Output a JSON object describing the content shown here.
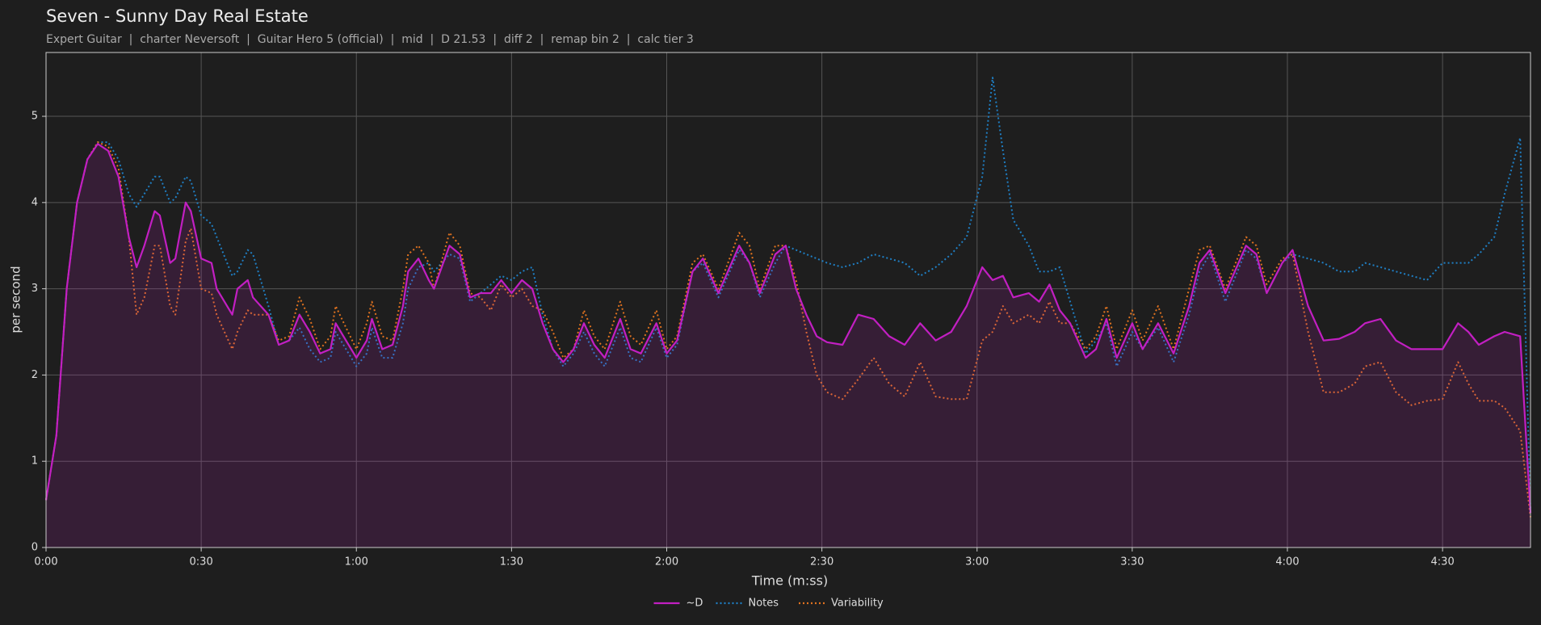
{
  "chart_data": {
    "type": "line",
    "title": "Seven - Sunny Day Real Estate",
    "subtitle": "Expert Guitar  |  charter Neversoft  |  Guitar Hero 5 (official)  |  mid  |  D 21.53  |  diff 2  |  remap bin 2  |  calc tier 3",
    "xlabel": "Time (m:ss)",
    "ylabel": "per second",
    "grid": true,
    "legend": "bottom",
    "x": [
      0,
      2,
      4,
      6,
      8,
      10,
      12,
      14,
      16,
      17.5,
      19,
      21,
      22,
      24,
      25,
      27,
      28,
      30,
      32,
      33,
      36,
      37,
      39,
      40,
      43,
      45,
      47,
      49,
      51,
      53,
      55,
      56,
      58,
      60,
      62,
      63,
      65,
      67,
      69,
      70,
      72,
      74,
      75,
      78,
      80,
      82,
      84,
      86,
      88,
      90,
      92,
      94,
      96,
      98,
      100,
      102,
      104,
      106,
      108,
      111,
      113,
      115,
      118,
      120,
      122,
      125,
      127,
      130,
      134,
      136,
      138,
      141,
      143,
      145,
      147,
      149,
      151,
      154,
      157,
      160,
      163,
      166,
      169,
      172,
      175,
      178,
      181,
      183,
      185,
      187,
      190,
      192,
      194,
      196,
      198,
      201,
      203,
      205,
      207,
      210,
      212,
      215,
      218,
      221,
      223,
      225,
      228,
      232,
      234,
      236,
      239,
      241,
      244,
      247,
      250,
      253,
      255,
      258,
      261,
      264,
      267,
      270,
      273,
      275,
      277,
      280,
      282,
      285,
      287
    ],
    "series": [
      {
        "name": "~D",
        "color": "#c21fc2",
        "style": "solid",
        "fill": true,
        "values": [
          0.55,
          1.3,
          3.0,
          4.0,
          4.5,
          4.68,
          4.6,
          4.3,
          3.6,
          3.25,
          3.5,
          3.9,
          3.85,
          3.3,
          3.35,
          4.0,
          3.9,
          3.35,
          3.3,
          3.0,
          2.7,
          3.0,
          3.1,
          2.9,
          2.7,
          2.35,
          2.4,
          2.7,
          2.5,
          2.25,
          2.3,
          2.6,
          2.4,
          2.2,
          2.4,
          2.65,
          2.3,
          2.35,
          2.8,
          3.2,
          3.35,
          3.1,
          3.0,
          3.5,
          3.4,
          2.9,
          2.95,
          2.95,
          3.1,
          2.95,
          3.1,
          3.0,
          2.6,
          2.3,
          2.15,
          2.3,
          2.6,
          2.35,
          2.2,
          2.65,
          2.3,
          2.25,
          2.6,
          2.25,
          2.4,
          3.2,
          3.35,
          2.95,
          3.5,
          3.3,
          2.95,
          3.4,
          3.5,
          3.0,
          2.7,
          2.45,
          2.38,
          2.35,
          2.7,
          2.65,
          2.45,
          2.35,
          2.6,
          2.4,
          2.5,
          2.8,
          3.25,
          3.1,
          3.15,
          2.9,
          2.95,
          2.85,
          3.05,
          2.75,
          2.6,
          2.2,
          2.3,
          2.65,
          2.2,
          2.6,
          2.3,
          2.6,
          2.25,
          2.8,
          3.3,
          3.45,
          2.95,
          3.5,
          3.4,
          2.95,
          3.3,
          3.45,
          2.8,
          2.4,
          2.42,
          2.5,
          2.6,
          2.65,
          2.4,
          2.3,
          2.3,
          2.3,
          2.6,
          2.5,
          2.35,
          2.45,
          2.5,
          2.45,
          0.4
        ]
      },
      {
        "name": "Notes",
        "color": "#1f7fc4",
        "style": "dotted",
        "values": [
          0.55,
          1.3,
          3.0,
          4.0,
          4.5,
          4.7,
          4.7,
          4.5,
          4.1,
          3.95,
          4.1,
          4.3,
          4.3,
          4.0,
          4.05,
          4.3,
          4.25,
          3.85,
          3.75,
          3.6,
          3.15,
          3.2,
          3.45,
          3.4,
          2.8,
          2.35,
          2.4,
          2.55,
          2.3,
          2.15,
          2.2,
          2.5,
          2.3,
          2.1,
          2.25,
          2.55,
          2.2,
          2.2,
          2.6,
          3.0,
          3.25,
          3.3,
          3.2,
          3.4,
          3.35,
          2.85,
          2.95,
          3.05,
          3.15,
          3.1,
          3.2,
          3.25,
          2.7,
          2.3,
          2.1,
          2.25,
          2.5,
          2.25,
          2.1,
          2.55,
          2.2,
          2.15,
          2.55,
          2.2,
          2.35,
          3.2,
          3.3,
          2.9,
          3.45,
          3.3,
          2.9,
          3.3,
          3.5,
          3.45,
          3.4,
          3.35,
          3.3,
          3.25,
          3.3,
          3.4,
          3.35,
          3.3,
          3.15,
          3.25,
          3.4,
          3.6,
          4.3,
          5.45,
          4.6,
          3.8,
          3.5,
          3.2,
          3.2,
          3.25,
          2.85,
          2.25,
          2.4,
          2.6,
          2.1,
          2.5,
          2.3,
          2.55,
          2.15,
          2.7,
          3.2,
          3.4,
          2.85,
          3.45,
          3.35,
          2.95,
          3.3,
          3.4,
          3.35,
          3.3,
          3.2,
          3.2,
          3.3,
          3.25,
          3.2,
          3.15,
          3.1,
          3.3,
          3.3,
          3.3,
          3.4,
          3.6,
          4.1,
          4.75,
          0.4
        ]
      },
      {
        "name": "Variability",
        "color": "#e0721f",
        "style": "dotted",
        "values": [
          0.55,
          1.3,
          3.0,
          4.0,
          4.5,
          4.7,
          4.65,
          4.4,
          3.6,
          2.7,
          2.9,
          3.5,
          3.5,
          2.8,
          2.7,
          3.55,
          3.7,
          3.0,
          2.95,
          2.7,
          2.3,
          2.5,
          2.75,
          2.7,
          2.7,
          2.4,
          2.45,
          2.9,
          2.65,
          2.3,
          2.45,
          2.8,
          2.55,
          2.3,
          2.6,
          2.85,
          2.45,
          2.4,
          3.0,
          3.4,
          3.5,
          3.3,
          3.0,
          3.65,
          3.5,
          2.95,
          2.9,
          2.75,
          3.05,
          2.9,
          3.0,
          2.8,
          2.75,
          2.5,
          2.2,
          2.3,
          2.75,
          2.45,
          2.3,
          2.85,
          2.45,
          2.35,
          2.75,
          2.3,
          2.45,
          3.3,
          3.4,
          3.0,
          3.65,
          3.5,
          3.0,
          3.5,
          3.5,
          3.1,
          2.5,
          2.0,
          1.8,
          1.72,
          1.95,
          2.2,
          1.9,
          1.75,
          2.15,
          1.75,
          1.72,
          1.72,
          2.4,
          2.5,
          2.8,
          2.6,
          2.7,
          2.6,
          2.85,
          2.6,
          2.6,
          2.3,
          2.45,
          2.8,
          2.3,
          2.75,
          2.4,
          2.8,
          2.3,
          3.0,
          3.45,
          3.5,
          3.0,
          3.6,
          3.5,
          3.05,
          3.35,
          3.4,
          2.5,
          1.8,
          1.8,
          1.9,
          2.1,
          2.15,
          1.8,
          1.65,
          1.7,
          1.72,
          2.15,
          1.9,
          1.7,
          1.7,
          1.62,
          1.35,
          0.35
        ]
      }
    ],
    "xlim": [
      0,
      287
    ],
    "xticks": [
      {
        "value": 0,
        "label": "0:00"
      },
      {
        "value": 30,
        "label": "0:30"
      },
      {
        "value": 60,
        "label": "1:00"
      },
      {
        "value": 90,
        "label": "1:30"
      },
      {
        "value": 120,
        "label": "2:00"
      },
      {
        "value": 150,
        "label": "2:30"
      },
      {
        "value": 180,
        "label": "3:00"
      },
      {
        "value": 210,
        "label": "3:30"
      },
      {
        "value": 240,
        "label": "4:00"
      },
      {
        "value": 270,
        "label": "4:30"
      }
    ],
    "ylim": [
      0,
      5.74
    ],
    "yticks": [
      0,
      1,
      2,
      3,
      4,
      5
    ]
  }
}
